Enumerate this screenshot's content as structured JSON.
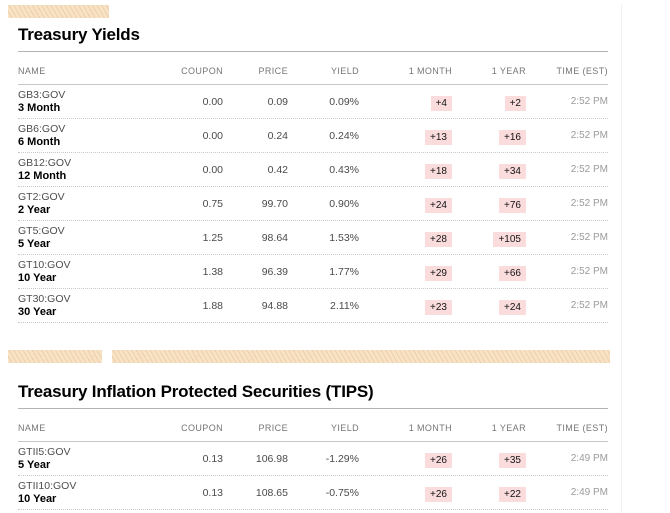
{
  "colors": {
    "badge_bg": "#fadcdc",
    "ad_base": "#f8e2c6",
    "ad_stripe": "#edcfa8"
  },
  "headers": {
    "name": "NAME",
    "coupon": "COUPON",
    "price": "PRICE",
    "yield": "YIELD",
    "one_month": "1 MONTH",
    "one_year": "1 YEAR",
    "time": "TIME (EST)"
  },
  "treasury_yields": {
    "title": "Treasury Yields",
    "rows": [
      {
        "ticker": "GB3:GOV",
        "tenor": "3 Month",
        "coupon": "0.00",
        "price": "0.09",
        "yield": "0.09%",
        "one_month": "+4",
        "one_year": "+2",
        "time": "2:52 PM"
      },
      {
        "ticker": "GB6:GOV",
        "tenor": "6 Month",
        "coupon": "0.00",
        "price": "0.24",
        "yield": "0.24%",
        "one_month": "+13",
        "one_year": "+16",
        "time": "2:52 PM"
      },
      {
        "ticker": "GB12:GOV",
        "tenor": "12 Month",
        "coupon": "0.00",
        "price": "0.42",
        "yield": "0.43%",
        "one_month": "+18",
        "one_year": "+34",
        "time": "2:52 PM"
      },
      {
        "ticker": "GT2:GOV",
        "tenor": "2 Year",
        "coupon": "0.75",
        "price": "99.70",
        "yield": "0.90%",
        "one_month": "+24",
        "one_year": "+76",
        "time": "2:52 PM"
      },
      {
        "ticker": "GT5:GOV",
        "tenor": "5 Year",
        "coupon": "1.25",
        "price": "98.64",
        "yield": "1.53%",
        "one_month": "+28",
        "one_year": "+105",
        "time": "2:52 PM"
      },
      {
        "ticker": "GT10:GOV",
        "tenor": "10 Year",
        "coupon": "1.38",
        "price": "96.39",
        "yield": "1.77%",
        "one_month": "+29",
        "one_year": "+66",
        "time": "2:52 PM"
      },
      {
        "ticker": "GT30:GOV",
        "tenor": "30 Year",
        "coupon": "1.88",
        "price": "94.88",
        "yield": "2.11%",
        "one_month": "+23",
        "one_year": "+24",
        "time": "2:52 PM"
      }
    ]
  },
  "tips": {
    "title": "Treasury Inflation Protected Securities (TIPS)",
    "rows": [
      {
        "ticker": "GTII5:GOV",
        "tenor": "5 Year",
        "coupon": "0.13",
        "price": "106.98",
        "yield": "-1.29%",
        "one_month": "+26",
        "one_year": "+35",
        "time": "2:49 PM"
      },
      {
        "ticker": "GTII10:GOV",
        "tenor": "10 Year",
        "coupon": "0.13",
        "price": "108.65",
        "yield": "-0.75%",
        "one_month": "+26",
        "one_year": "+22",
        "time": "2:49 PM"
      }
    ]
  }
}
